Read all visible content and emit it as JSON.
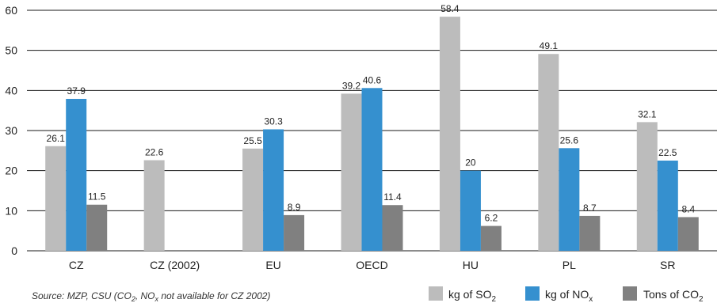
{
  "chart_data": {
    "type": "bar",
    "categories": [
      "CZ",
      "CZ (2002)",
      "EU",
      "OECD",
      "HU",
      "PL",
      "SR"
    ],
    "series": [
      {
        "key": "so2",
        "name": "kg of SO",
        "name_sub": "2",
        "color": "#bcbcbc",
        "values": [
          26.1,
          22.6,
          25.5,
          39.2,
          58.4,
          49.1,
          32.1
        ]
      },
      {
        "key": "nox",
        "name": "kg of NO",
        "name_sub": "x",
        "color": "#3590cf",
        "values": [
          37.9,
          null,
          30.3,
          40.6,
          20,
          25.6,
          22.5
        ]
      },
      {
        "key": "co2",
        "name": "Tons of CO",
        "name_sub": "2",
        "color": "#808080",
        "values": [
          11.5,
          null,
          8.9,
          11.4,
          6.2,
          8.7,
          8.4
        ]
      }
    ],
    "data_labels": [
      [
        "26.1",
        "37.9",
        "11.5"
      ],
      [
        "22.6",
        null,
        null
      ],
      [
        "25.5",
        "30.3",
        "8.9"
      ],
      [
        "39.2",
        "40.6",
        "11.4"
      ],
      [
        "58.4",
        "20",
        "6.2"
      ],
      [
        "49.1",
        "25.6",
        "8.7"
      ],
      [
        "32.1",
        "22.5",
        "8.4"
      ]
    ],
    "yticks": [
      0,
      10,
      20,
      30,
      40,
      50,
      60
    ],
    "ylim": [
      0,
      60
    ],
    "grid": true,
    "legend_position": "bottom-right",
    "title": "",
    "xlabel": "",
    "ylabel": ""
  },
  "source": {
    "prefix": "Source: MZP, CSU (CO",
    "sub1": "2",
    "mid": ", NO",
    "sub2": "x",
    "suffix": " not available for CZ 2002)"
  }
}
